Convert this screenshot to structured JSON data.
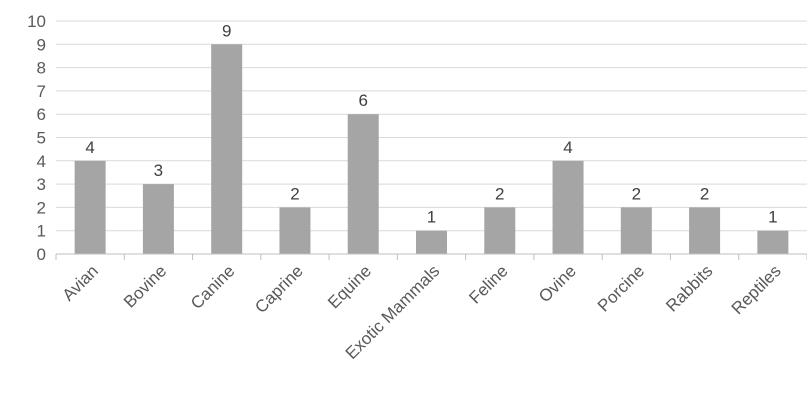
{
  "chart_data": {
    "type": "bar",
    "title": "",
    "xlabel": "",
    "ylabel": "",
    "categories": [
      "Avian",
      "Bovine",
      "Canine",
      "Caprine",
      "Equine",
      "Exotic Mammals",
      "Feline",
      "Ovine",
      "Porcine",
      "Rabbits",
      "Reptiles"
    ],
    "values": [
      4,
      3,
      9,
      2,
      6,
      1,
      2,
      4,
      2,
      2,
      1
    ],
    "ylim": [
      0,
      10
    ],
    "yticks": [
      0,
      1,
      2,
      3,
      4,
      5,
      6,
      7,
      8,
      9,
      10
    ],
    "grid": true,
    "data_labels": true,
    "bar_color": "#a5a5a5"
  }
}
